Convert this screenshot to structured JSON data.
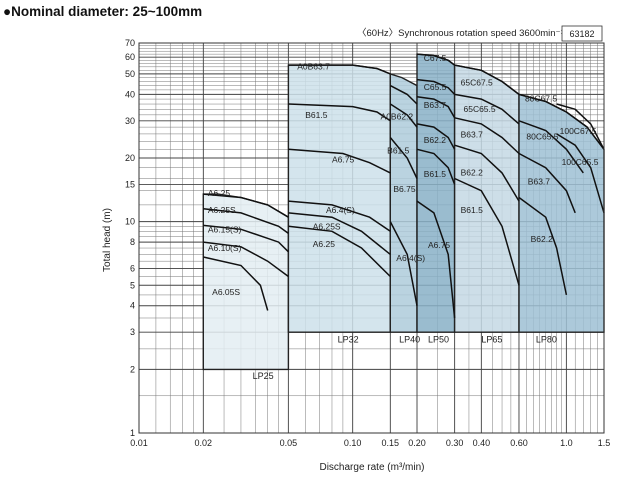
{
  "heading": "●Nominal diameter: 25~100mm",
  "chart_data": {
    "type": "area",
    "subtitle": "〈60Hz〉Synchronous rotation speed 3600min⁻¹",
    "code": "63182",
    "xlabel": "Discharge rate (m³/min)",
    "ylabel": "Total head (m)",
    "x_scale": "log",
    "y_scale": "log",
    "xlim": [
      0.01,
      1.5
    ],
    "ylim": [
      1,
      70
    ],
    "grid": true,
    "x_ticks": [
      {
        "v": 0.01,
        "label": "0.01"
      },
      {
        "v": 0.02,
        "label": "0.02"
      },
      {
        "v": 0.05,
        "label": "0.05"
      },
      {
        "v": 0.1,
        "label": "0.10"
      },
      {
        "v": 0.15,
        "label": "0.15"
      },
      {
        "v": 0.2,
        "label": "0.20"
      },
      {
        "v": 0.3,
        "label": "0.30"
      },
      {
        "v": 0.4,
        "label": "0.40"
      },
      {
        "v": 0.6,
        "label": "0.60"
      },
      {
        "v": 1.0,
        "label": "1.0"
      },
      {
        "v": 1.5,
        "label": "1.5"
      }
    ],
    "y_ticks": [
      1,
      2,
      3,
      4,
      5,
      6,
      8,
      10,
      15,
      20,
      30,
      40,
      50,
      60,
      70
    ],
    "regions": [
      {
        "name": "LP25",
        "color": "#e3edf2",
        "x0": 0.02,
        "x1": 0.05,
        "polygon": [
          [
            0.02,
            2
          ],
          [
            0.02,
            13.5
          ],
          [
            0.0235,
            13.5
          ],
          [
            0.03,
            13
          ],
          [
            0.04,
            12
          ],
          [
            0.05,
            10.5
          ],
          [
            0.05,
            2
          ]
        ],
        "label_x": 0.034,
        "label_y": 1.8
      },
      {
        "name": "LP32",
        "color": "#cde0ea",
        "x0": 0.05,
        "x1": 0.15,
        "polygon": [
          [
            0.05,
            3
          ],
          [
            0.05,
            55
          ],
          [
            0.1,
            55
          ],
          [
            0.13,
            53
          ],
          [
            0.15,
            50
          ],
          [
            0.15,
            3
          ]
        ],
        "label_x": 0.085,
        "label_y": 2.68
      },
      {
        "name": "LP40",
        "color": "#aecbdb",
        "x0": 0.15,
        "x1": 0.2,
        "polygon": [
          [
            0.15,
            3
          ],
          [
            0.15,
            50
          ],
          [
            0.17,
            48
          ],
          [
            0.2,
            44
          ],
          [
            0.2,
            3
          ]
        ],
        "label_x": 0.165,
        "label_y": 2.68
      },
      {
        "name": "LP50",
        "color": "#88b0c7",
        "x0": 0.2,
        "x1": 0.3,
        "polygon": [
          [
            0.2,
            3
          ],
          [
            0.2,
            62
          ],
          [
            0.24,
            61
          ],
          [
            0.28,
            58
          ],
          [
            0.3,
            55
          ],
          [
            0.3,
            3
          ]
        ],
        "label_x": 0.225,
        "label_y": 2.68
      },
      {
        "name": "LP65",
        "color": "#c4d8e4",
        "x0": 0.3,
        "x1": 0.6,
        "polygon": [
          [
            0.3,
            3
          ],
          [
            0.3,
            55
          ],
          [
            0.4,
            52
          ],
          [
            0.5,
            46
          ],
          [
            0.6,
            40
          ],
          [
            0.6,
            3
          ]
        ],
        "label_x": 0.4,
        "label_y": 2.68
      },
      {
        "name": "LP80",
        "color": "#9dbfd3",
        "x0": 0.6,
        "x1": 1.5,
        "polygon": [
          [
            0.6,
            3
          ],
          [
            0.6,
            40
          ],
          [
            0.8,
            37
          ],
          [
            1.0,
            33
          ],
          [
            1.25,
            28
          ],
          [
            1.5,
            22
          ],
          [
            1.5,
            3
          ]
        ],
        "label_x": 0.72,
        "label_y": 2.68
      }
    ],
    "series": [
      {
        "name": "A6.25",
        "x": [
          0.02,
          0.03,
          0.04,
          0.05
        ],
        "y": [
          13.5,
          13,
          12,
          10.5
        ],
        "label_x": 0.021,
        "label_y": 13.2
      },
      {
        "name": "A6.25S",
        "x": [
          0.02,
          0.03,
          0.045,
          0.05
        ],
        "y": [
          11.5,
          11,
          9.5,
          8.8
        ],
        "label_x": 0.021,
        "label_y": 11.0
      },
      {
        "name": "A6.15(S)",
        "x": [
          0.02,
          0.03,
          0.045,
          0.05
        ],
        "y": [
          9.6,
          9.2,
          8,
          7.2
        ],
        "label_x": 0.021,
        "label_y": 8.9
      },
      {
        "name": "A6.10(S)",
        "x": [
          0.02,
          0.03,
          0.04,
          0.05
        ],
        "y": [
          8.0,
          7.6,
          6.5,
          5.5
        ],
        "label_x": 0.021,
        "label_y": 7.25
      },
      {
        "name": "A6.05S",
        "x": [
          0.02,
          0.03,
          0.037,
          0.04
        ],
        "y": [
          6.8,
          6.2,
          5.0,
          3.8
        ],
        "label_x": 0.022,
        "label_y": 4.5
      },
      {
        "name": "A0B63.7",
        "x": [
          0.05,
          0.1,
          0.13,
          0.15
        ],
        "y": [
          55,
          55,
          53,
          50
        ],
        "label_x": 0.055,
        "label_y": 52.5
      },
      {
        "name": "B61.5",
        "x": [
          0.05,
          0.1,
          0.13,
          0.15
        ],
        "y": [
          36,
          35,
          33,
          30
        ],
        "label_x": 0.06,
        "label_y": 31
      },
      {
        "name": "A6.75",
        "x": [
          0.05,
          0.09,
          0.12,
          0.15
        ],
        "y": [
          22,
          21,
          19,
          17
        ],
        "label_x": 0.08,
        "label_y": 19
      },
      {
        "name": "A6.4(S)",
        "x": [
          0.05,
          0.08,
          0.12,
          0.15
        ],
        "y": [
          12.5,
          12,
          10.5,
          9
        ],
        "label_x": 0.075,
        "label_y": 11
      },
      {
        "name": "A6.25S",
        "x": [
          0.05,
          0.08,
          0.11,
          0.15
        ],
        "y": [
          11,
          10.5,
          9,
          7
        ],
        "label_x": 0.065,
        "label_y": 9.2
      },
      {
        "name": "A6.25",
        "x": [
          0.05,
          0.08,
          0.11,
          0.15
        ],
        "y": [
          9.5,
          9,
          7.5,
          5.5
        ],
        "label_x": 0.065,
        "label_y": 7.6
      },
      {
        "name": "A0B62.2",
        "x": [
          0.15,
          0.18,
          0.2
        ],
        "y": [
          44,
          40,
          36
        ],
        "label_x": 0.135,
        "label_y": 30.5
      },
      {
        "name": "B61.5",
        "x": [
          0.15,
          0.18,
          0.2
        ],
        "y": [
          36,
          32,
          28
        ],
        "label_x": 0.145,
        "label_y": 21
      },
      {
        "name": "B6.75",
        "x": [
          0.15,
          0.18,
          0.2
        ],
        "y": [
          25,
          20,
          16
        ],
        "label_x": 0.155,
        "label_y": 13.8
      },
      {
        "name": "A6.4(S)",
        "x": [
          0.15,
          0.18,
          0.2
        ],
        "y": [
          10,
          7,
          4
        ],
        "label_x": 0.16,
        "label_y": 6.5
      },
      {
        "name": "C67.5",
        "x": [
          0.2,
          0.24,
          0.28,
          0.3
        ],
        "y": [
          62,
          61,
          58,
          55
        ],
        "label_x": 0.215,
        "label_y": 57.5
      },
      {
        "name": "C65.5",
        "x": [
          0.2,
          0.24,
          0.28,
          0.3
        ],
        "y": [
          47,
          46,
          43,
          40
        ],
        "label_x": 0.215,
        "label_y": 42
      },
      {
        "name": "B63.7",
        "x": [
          0.2,
          0.24,
          0.28,
          0.3
        ],
        "y": [
          39,
          38,
          35,
          31
        ],
        "label_x": 0.215,
        "label_y": 34.5
      },
      {
        "name": "B62.2",
        "x": [
          0.2,
          0.24,
          0.28,
          0.3
        ],
        "y": [
          29,
          28,
          25,
          22
        ],
        "label_x": 0.215,
        "label_y": 23.5
      },
      {
        "name": "B61.5",
        "x": [
          0.2,
          0.24,
          0.28,
          0.3
        ],
        "y": [
          22,
          21,
          18,
          15
        ],
        "label_x": 0.215,
        "label_y": 16.3
      },
      {
        "name": "A6.75",
        "x": [
          0.2,
          0.24,
          0.28,
          0.3
        ],
        "y": [
          12.5,
          11,
          7,
          3.5
        ],
        "label_x": 0.225,
        "label_y": 7.5
      },
      {
        "name": "65C67.5",
        "x": [
          0.3,
          0.4,
          0.5,
          0.6
        ],
        "y": [
          55,
          52,
          46,
          40
        ],
        "label_x": 0.32,
        "label_y": 44
      },
      {
        "name": "65C65.5",
        "x": [
          0.3,
          0.4,
          0.5,
          0.6
        ],
        "y": [
          40,
          38,
          34,
          29
        ],
        "label_x": 0.33,
        "label_y": 33
      },
      {
        "name": "B63.7",
        "x": [
          0.3,
          0.4,
          0.5,
          0.6
        ],
        "y": [
          31,
          29,
          25,
          21
        ],
        "label_x": 0.32,
        "label_y": 25
      },
      {
        "name": "B62.2",
        "x": [
          0.3,
          0.4,
          0.5,
          0.6
        ],
        "y": [
          23,
          21,
          17,
          12.5
        ],
        "label_x": 0.32,
        "label_y": 16.5
      },
      {
        "name": "B61.5",
        "x": [
          0.3,
          0.4,
          0.5,
          0.6
        ],
        "y": [
          16,
          14,
          9.5,
          5
        ],
        "label_x": 0.32,
        "label_y": 11
      },
      {
        "name": "80C67.5",
        "x": [
          0.6,
          0.8,
          1.0,
          1.25,
          1.5
        ],
        "y": [
          40,
          37,
          33,
          28,
          22
        ],
        "label_x": 0.64,
        "label_y": 37
      },
      {
        "name": "80C65.5",
        "x": [
          0.6,
          0.8,
          1.0,
          1.2
        ],
        "y": [
          30,
          27,
          22,
          17
        ],
        "label_x": 0.65,
        "label_y": 24.5
      },
      {
        "name": "B63.7",
        "x": [
          0.6,
          0.8,
          1.0,
          1.1
        ],
        "y": [
          21,
          18,
          14,
          11
        ],
        "label_x": 0.66,
        "label_y": 15
      },
      {
        "name": "B62.2",
        "x": [
          0.6,
          0.8,
          0.9,
          1.0
        ],
        "y": [
          13,
          10.5,
          7.5,
          4.5
        ],
        "label_x": 0.68,
        "label_y": 8
      },
      {
        "name": "100C67.5",
        "x": [
          0.9,
          1.1,
          1.3,
          1.5
        ],
        "y": [
          36,
          34,
          29,
          22
        ],
        "label_x": 0.93,
        "label_y": 26
      },
      {
        "name": "100C65.5",
        "x": [
          0.9,
          1.1,
          1.3,
          1.5
        ],
        "y": [
          26,
          23,
          18,
          11
        ],
        "label_x": 0.95,
        "label_y": 18.5
      }
    ]
  }
}
